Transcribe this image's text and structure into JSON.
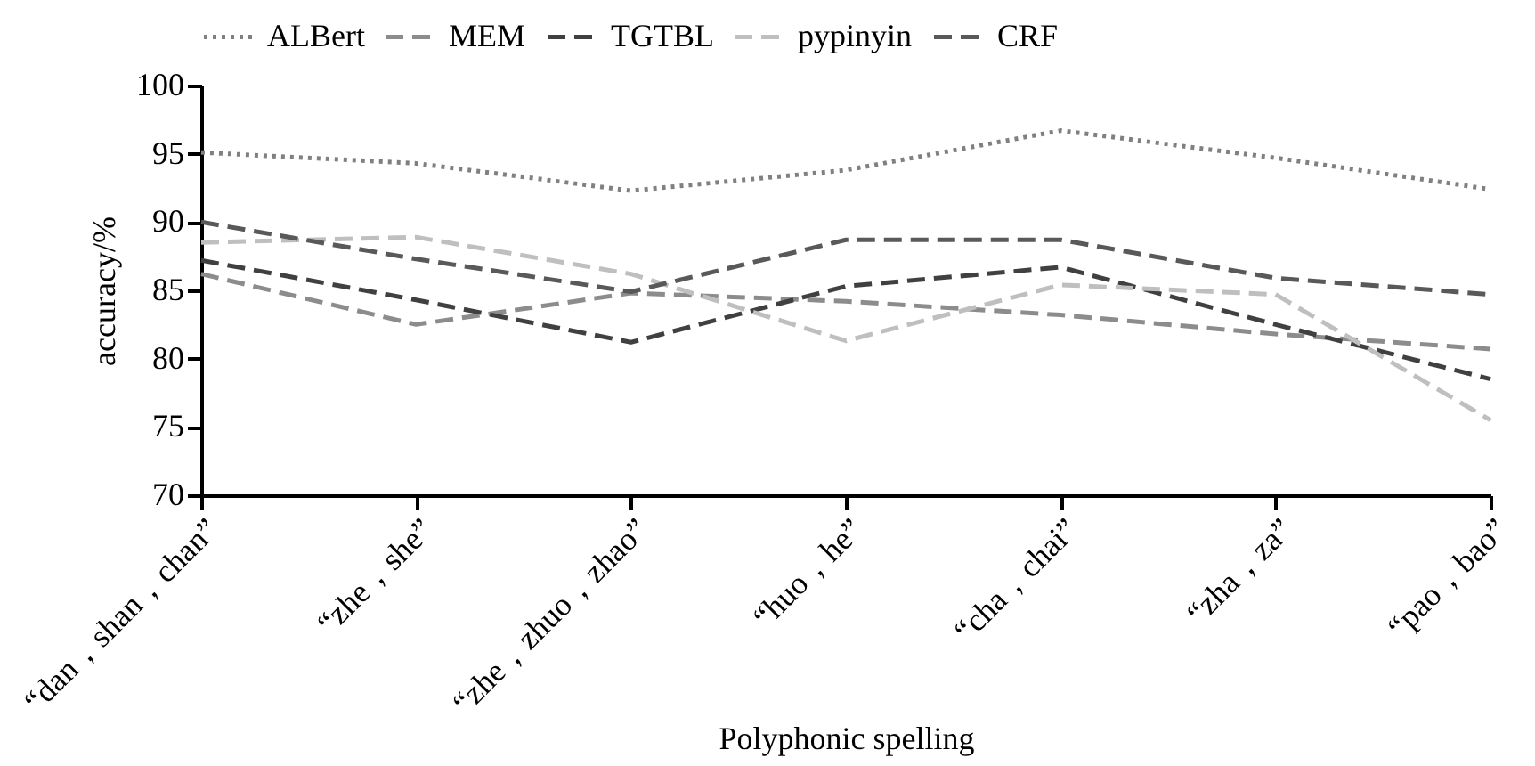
{
  "chart_data": {
    "type": "line",
    "xlabel": "Polyphonic spelling",
    "ylabel": "accuracy/%",
    "categories": [
      "“dan，shan，chan”",
      "“zhe，she”",
      "“zhe，zhuo，zhao”",
      "“huo，he”",
      "“cha，chai”",
      "“zha，za”",
      "“pao，bao”"
    ],
    "series": [
      {
        "name": "ALBert",
        "color": "#808080",
        "line_style": "dotted",
        "values": [
          95.1,
          94.3,
          92.3,
          93.8,
          96.7,
          94.7,
          92.4
        ]
      },
      {
        "name": "MEM",
        "color": "#8c8c8c",
        "line_style": "dashed",
        "values": [
          86.2,
          82.5,
          84.8,
          84.2,
          83.2,
          81.8,
          80.7
        ]
      },
      {
        "name": "TGTBL",
        "color": "#404040",
        "line_style": "dashed",
        "values": [
          87.2,
          84.3,
          81.2,
          85.3,
          86.7,
          82.5,
          78.5
        ]
      },
      {
        "name": "pypinyin",
        "color": "#bfbfbf",
        "line_style": "dashed",
        "values": [
          88.5,
          88.9,
          86.2,
          81.3,
          85.4,
          84.7,
          75.5
        ]
      },
      {
        "name": "CRF",
        "color": "#595959",
        "line_style": "dashed",
        "values": [
          90.0,
          87.3,
          84.9,
          88.7,
          88.7,
          85.9,
          84.7
        ]
      }
    ],
    "ylim": [
      70,
      100
    ],
    "yticks": [
      70,
      75,
      80,
      85,
      90,
      95,
      100
    ],
    "grid": false,
    "legend": "top",
    "marker": "none"
  }
}
